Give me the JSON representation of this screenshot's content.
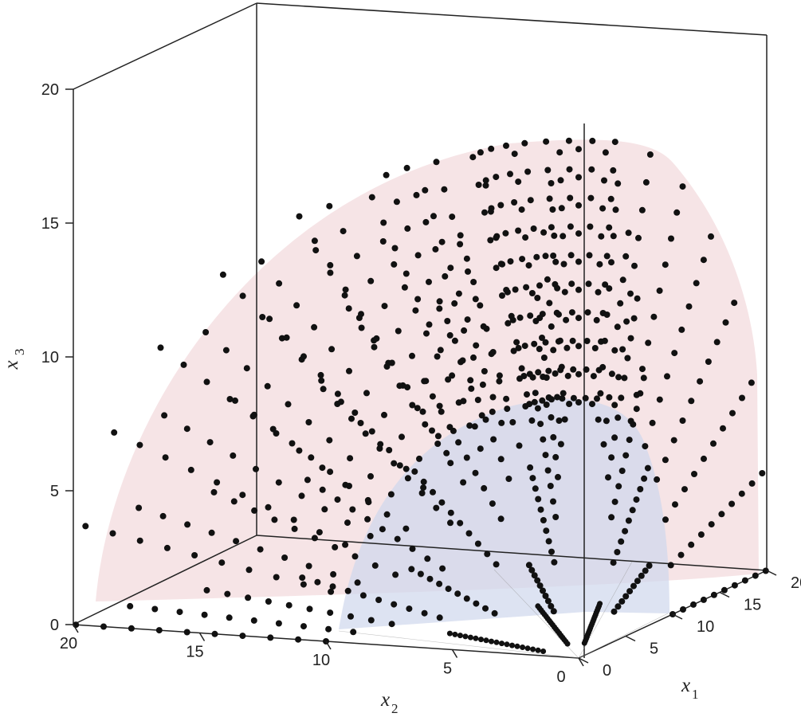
{
  "chart_data": {
    "type": "scatter",
    "dimensions": 3,
    "axes": {
      "x1": {
        "label": "x",
        "subscript": "1",
        "ticks": [
          "0",
          "5",
          "10",
          "15",
          "20"
        ],
        "range": [
          0,
          20
        ]
      },
      "x2": {
        "label": "x",
        "subscript": "2",
        "ticks": [
          "20",
          "15",
          "10",
          "5",
          "0"
        ],
        "range": [
          0,
          20
        ]
      },
      "x3": {
        "label": "x",
        "subscript": "3",
        "ticks": [
          "0",
          "5",
          "10",
          "15",
          "20"
        ],
        "range": [
          0,
          20
        ]
      }
    },
    "grid": false,
    "surfaces": [
      {
        "shape": "quarter-sphere",
        "radius": 20,
        "color": "#f1d6d8"
      },
      {
        "shape": "quarter-sphere",
        "radius": 10,
        "color": "#cfd7ec"
      }
    ],
    "points": {
      "color": "#111111",
      "groups": [
        {
          "name": "origin-rays",
          "note": "dotted rays through the origin between the two surfaces"
        },
        {
          "name": "inner-spokes",
          "note": "dense dotted segments near the origin"
        }
      ]
    }
  },
  "colors": {
    "outer_surface": "#f1d6d8",
    "inner_surface": "#cfd7ec",
    "points": "#111111",
    "box_lines": "#222222"
  }
}
